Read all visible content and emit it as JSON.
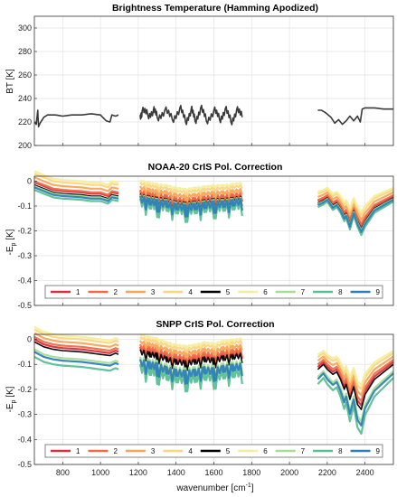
{
  "chart_data": [
    {
      "type": "line",
      "title": "Brightness Temperature (Hamming Apodized)",
      "xlabel": "",
      "ylabel": "BT [K]",
      "xlim": [
        650,
        2550
      ],
      "ylim": [
        200,
        310
      ],
      "yticks": [
        200,
        220,
        240,
        260,
        280,
        300
      ],
      "xticks": [
        800,
        1000,
        1200,
        1400,
        1600,
        1800,
        2000,
        2200,
        2400
      ],
      "show_xticklabels": false,
      "grid": true,
      "colors": [
        "#3a3a3a"
      ],
      "series": [
        {
          "segments": [
            [
              [
                650,
                220
              ],
              [
                660,
                218
              ],
              [
                668,
                230
              ],
              [
                672,
                216
              ],
              [
                680,
                219
              ],
              [
                700,
                224
              ],
              [
                720,
                226
              ],
              [
                760,
                226
              ],
              [
                800,
                225
              ],
              [
                850,
                226
              ],
              [
                900,
                226
              ],
              [
                950,
                227
              ],
              [
                1000,
                226
              ],
              [
                1030,
                221
              ],
              [
                1050,
                220
              ],
              [
                1060,
                226
              ],
              [
                1080,
                225
              ],
              [
                1095,
                226
              ]
            ],
            [
              [
                1210,
                226
              ],
              [
                1220,
                229
              ],
              [
                1250,
                226
              ],
              [
                1280,
                230
              ],
              [
                1300,
                224
              ],
              [
                1340,
                230
              ],
              [
                1380,
                222
              ],
              [
                1420,
                232
              ],
              [
                1450,
                220
              ],
              [
                1480,
                231
              ],
              [
                1500,
                221
              ],
              [
                1530,
                232
              ],
              [
                1560,
                221
              ],
              [
                1600,
                230
              ],
              [
                1630,
                222
              ],
              [
                1660,
                231
              ],
              [
                1690,
                220
              ],
              [
                1720,
                230
              ],
              [
                1750,
                224
              ]
            ],
            [
              [
                2150,
                230
              ],
              [
                2170,
                230
              ],
              [
                2190,
                228
              ],
              [
                2220,
                224
              ],
              [
                2240,
                219
              ],
              [
                2260,
                222
              ],
              [
                2280,
                218
              ],
              [
                2300,
                221
              ],
              [
                2320,
                225
              ],
              [
                2340,
                221
              ],
              [
                2360,
                225
              ],
              [
                2375,
                220
              ],
              [
                2385,
                231
              ],
              [
                2400,
                232
              ],
              [
                2450,
                232
              ],
              [
                2500,
                231
              ],
              [
                2550,
                231
              ]
            ]
          ]
        }
      ]
    },
    {
      "type": "line",
      "title": "NOAA-20 CrIS Pol. Correction",
      "xlabel": "",
      "ylabel": "-E_p [K]",
      "xlim": [
        650,
        2550
      ],
      "ylim": [
        -0.5,
        0.02
      ],
      "yticks": [
        0,
        -0.1,
        -0.2,
        -0.3,
        -0.4,
        -0.5
      ],
      "xticks": [
        800,
        1000,
        1200,
        1400,
        1600,
        1800,
        2000,
        2200,
        2400
      ],
      "show_xticklabels": false,
      "grid": true,
      "legend": {
        "position": "bottom",
        "entries": [
          "1",
          "2",
          "3",
          "4",
          "5",
          "6",
          "7",
          "8",
          "9"
        ]
      },
      "colors": [
        "#d7303f",
        "#ef6a46",
        "#f5a55a",
        "#fad67f",
        "#000000",
        "#f4ee9c",
        "#a7de96",
        "#5bbf94",
        "#2f7fb8"
      ],
      "series_mean": [
        {
          "name": "band1",
          "segments": [
            [
              [
                650,
                -0.005
              ],
              [
                700,
                -0.02
              ],
              [
                750,
                -0.035
              ],
              [
                800,
                -0.04
              ],
              [
                900,
                -0.045
              ],
              [
                950,
                -0.05
              ],
              [
                1000,
                -0.05
              ],
              [
                1040,
                -0.06
              ],
              [
                1060,
                -0.045
              ],
              [
                1095,
                -0.05
              ]
            ],
            [
              [
                1210,
                -0.04
              ],
              [
                1260,
                -0.05
              ],
              [
                1300,
                -0.055
              ],
              [
                1350,
                -0.06
              ],
              [
                1400,
                -0.07
              ],
              [
                1450,
                -0.075
              ],
              [
                1500,
                -0.07
              ],
              [
                1550,
                -0.065
              ],
              [
                1600,
                -0.06
              ],
              [
                1650,
                -0.06
              ],
              [
                1700,
                -0.055
              ],
              [
                1750,
                -0.05
              ]
            ],
            [
              [
                2150,
                -0.08
              ],
              [
                2180,
                -0.07
              ],
              [
                2200,
                -0.06
              ],
              [
                2230,
                -0.09
              ],
              [
                2250,
                -0.08
              ],
              [
                2270,
                -0.1
              ],
              [
                2290,
                -0.13
              ],
              [
                2300,
                -0.12
              ],
              [
                2320,
                -0.16
              ],
              [
                2340,
                -0.11
              ],
              [
                2360,
                -0.15
              ],
              [
                2380,
                -0.18
              ],
              [
                2400,
                -0.15
              ],
              [
                2450,
                -0.1
              ],
              [
                2500,
                -0.08
              ],
              [
                2550,
                -0.06
              ]
            ]
          ]
        }
      ],
      "series_offsets": [
        0.0,
        0.005,
        0.02,
        0.035,
        -0.01,
        0.045,
        -0.015,
        -0.03,
        -0.02
      ],
      "band2_spread": [
        0.8,
        0.9,
        0.55,
        0.35,
        1.0,
        0.2,
        1.3,
        1.5,
        1.2
      ]
    },
    {
      "type": "line",
      "title": "SNPP CrIS Pol. Correction",
      "xlabel": "wavenumber [cm-1]",
      "ylabel": "-E_p [K]",
      "xlim": [
        650,
        2550
      ],
      "ylim": [
        -0.5,
        0.02
      ],
      "yticks": [
        0,
        -0.1,
        -0.2,
        -0.3,
        -0.4,
        -0.5
      ],
      "xticks": [
        800,
        1000,
        1200,
        1400,
        1600,
        1800,
        2000,
        2200,
        2400
      ],
      "show_xticklabels": true,
      "grid": true,
      "legend": {
        "position": "bottom",
        "entries": [
          "1",
          "2",
          "3",
          "4",
          "5",
          "6",
          "7",
          "8",
          "9"
        ]
      },
      "colors": [
        "#d7303f",
        "#ef6a46",
        "#f5a55a",
        "#fad67f",
        "#000000",
        "#f4ee9c",
        "#a7de96",
        "#5bbf94",
        "#2f7fb8"
      ],
      "series_mean": [
        {
          "name": "band1",
          "segments": [
            [
              [
                650,
                -0.01
              ],
              [
                700,
                -0.03
              ],
              [
                750,
                -0.04
              ],
              [
                800,
                -0.045
              ],
              [
                900,
                -0.05
              ],
              [
                950,
                -0.055
              ],
              [
                1000,
                -0.06
              ],
              [
                1050,
                -0.065
              ],
              [
                1080,
                -0.055
              ],
              [
                1095,
                -0.06
              ]
            ],
            [
              [
                1210,
                -0.04
              ],
              [
                1260,
                -0.05
              ],
              [
                1300,
                -0.055
              ],
              [
                1350,
                -0.07
              ],
              [
                1400,
                -0.08
              ],
              [
                1450,
                -0.085
              ],
              [
                1500,
                -0.08
              ],
              [
                1550,
                -0.07
              ],
              [
                1600,
                -0.075
              ],
              [
                1650,
                -0.065
              ],
              [
                1700,
                -0.06
              ],
              [
                1750,
                -0.055
              ]
            ],
            [
              [
                2150,
                -0.12
              ],
              [
                2180,
                -0.1
              ],
              [
                2200,
                -0.12
              ],
              [
                2230,
                -0.14
              ],
              [
                2250,
                -0.13
              ],
              [
                2270,
                -0.16
              ],
              [
                2290,
                -0.2
              ],
              [
                2300,
                -0.18
              ],
              [
                2320,
                -0.24
              ],
              [
                2340,
                -0.19
              ],
              [
                2360,
                -0.26
              ],
              [
                2380,
                -0.28
              ],
              [
                2400,
                -0.22
              ],
              [
                2450,
                -0.16
              ],
              [
                2500,
                -0.13
              ],
              [
                2550,
                -0.1
              ]
            ]
          ]
        }
      ],
      "series_offsets": [
        0.01,
        0.02,
        0.035,
        0.05,
        0.0,
        0.06,
        -0.03,
        -0.06,
        -0.04
      ],
      "band2_spread": [
        0.8,
        0.9,
        0.55,
        0.35,
        1.0,
        0.2,
        1.3,
        1.6,
        1.3
      ]
    }
  ],
  "xlabel_main": "wavenumber [cm",
  "xlabel_sup": "-1",
  "xlabel_end": "]",
  "ylabel_bt": "BT [K]",
  "ylabel_ep_prefix": "-E",
  "ylabel_ep_sub": "p",
  "ylabel_ep_suffix": " [K]"
}
